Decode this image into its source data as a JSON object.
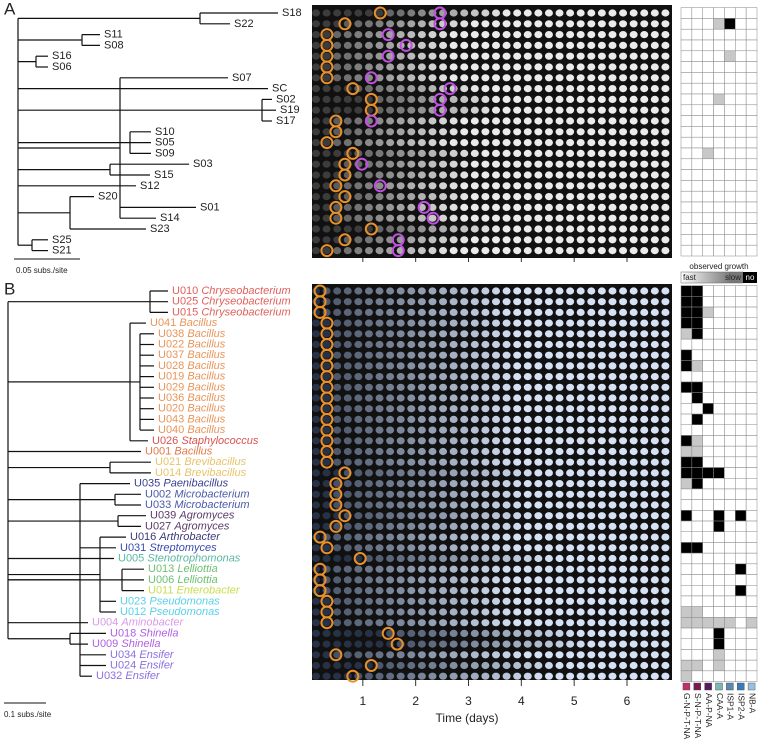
{
  "panel_a": {
    "label": "A",
    "scale_label": "0.05 subs./site",
    "rows": [
      {
        "name": "S18",
        "onset": 1.33,
        "second": 2.46,
        "growth": [
          0,
          0,
          0,
          0,
          0,
          0,
          0
        ]
      },
      {
        "name": "S22",
        "onset": 0.66,
        "second": 2.46,
        "growth": [
          0,
          0,
          0,
          1,
          3,
          0,
          0
        ]
      },
      {
        "name": "S11",
        "onset": 0.32,
        "second": 1.48,
        "growth": [
          0,
          0,
          0,
          0,
          0,
          0,
          0
        ]
      },
      {
        "name": "S08",
        "onset": 0.32,
        "second": 1.82,
        "growth": [
          0,
          0,
          0,
          0,
          0,
          0,
          0
        ]
      },
      {
        "name": "S16",
        "onset": 0.32,
        "second": 1.48,
        "growth": [
          0,
          0,
          0,
          0,
          1,
          0,
          0
        ]
      },
      {
        "name": "S06",
        "onset": 0.32,
        "second": null,
        "growth": [
          0,
          0,
          0,
          0,
          0,
          0,
          0
        ]
      },
      {
        "name": "S07",
        "onset": 0.32,
        "second": 1.16,
        "growth": [
          0,
          0,
          0,
          0,
          0,
          0,
          0
        ]
      },
      {
        "name": "SC",
        "onset": 0.81,
        "second": 2.65,
        "growth": [
          0,
          0,
          0,
          0,
          0,
          0,
          0
        ]
      },
      {
        "name": "S02",
        "onset": 1.16,
        "second": 2.46,
        "growth": [
          0,
          0,
          0,
          1,
          0,
          0,
          0
        ]
      },
      {
        "name": "S19",
        "onset": 1.16,
        "second": 2.46,
        "growth": [
          0,
          0,
          0,
          0,
          0,
          0,
          0
        ]
      },
      {
        "name": "S17",
        "onset": 0.49,
        "second": 1.16,
        "growth": [
          0,
          0,
          0,
          0,
          0,
          0,
          0
        ]
      },
      {
        "name": "S10",
        "onset": 0.49,
        "second": null,
        "growth": [
          0,
          0,
          0,
          0,
          0,
          0,
          0
        ]
      },
      {
        "name": "S05",
        "onset": 0.32,
        "second": null,
        "growth": [
          0,
          0,
          0,
          0,
          0,
          0,
          0
        ]
      },
      {
        "name": "S09",
        "onset": 0.81,
        "second": null,
        "growth": [
          0,
          0,
          1,
          0,
          0,
          0,
          0
        ]
      },
      {
        "name": "S03",
        "onset": 0.66,
        "second": 0.98,
        "growth": [
          0,
          0,
          0,
          0,
          0,
          0,
          0
        ]
      },
      {
        "name": "S15",
        "onset": 0.66,
        "second": null,
        "growth": [
          0,
          0,
          0,
          0,
          0,
          0,
          0
        ]
      },
      {
        "name": "S12",
        "onset": 0.49,
        "second": 1.33,
        "growth": [
          0,
          0,
          0,
          0,
          0,
          0,
          0
        ]
      },
      {
        "name": "S20",
        "onset": 0.66,
        "second": null,
        "growth": [
          0,
          0,
          0,
          0,
          0,
          0,
          0
        ]
      },
      {
        "name": "S01",
        "onset": 0.49,
        "second": 2.16,
        "growth": [
          0,
          0,
          0,
          0,
          0,
          0,
          0
        ]
      },
      {
        "name": "S14",
        "onset": 0.49,
        "second": 2.33,
        "growth": [
          0,
          0,
          0,
          0,
          0,
          0,
          0
        ]
      },
      {
        "name": "S23",
        "onset": 1.16,
        "second": null,
        "growth": [
          0,
          0,
          0,
          0,
          0,
          0,
          0
        ]
      },
      {
        "name": "S25",
        "onset": 0.66,
        "second": 1.67,
        "growth": [
          0,
          0,
          0,
          0,
          0,
          0,
          0
        ]
      },
      {
        "name": "S21",
        "onset": 0.32,
        "second": 1.67,
        "growth": [
          0,
          0,
          0,
          0,
          0,
          0,
          0
        ]
      }
    ]
  },
  "panel_b": {
    "label": "B",
    "scale_label": "0.1 subs./site",
    "rows": [
      {
        "name": "U010",
        "genus": "Chryseobacterium",
        "color": "#e0605a",
        "onset": 0.19,
        "growth": [
          3,
          3,
          0,
          0,
          0,
          0,
          0
        ]
      },
      {
        "name": "U025",
        "genus": "Chryseobacterium",
        "color": "#e0605a",
        "onset": 0.19,
        "growth": [
          3,
          3,
          0,
          0,
          0,
          0,
          0
        ]
      },
      {
        "name": "U015",
        "genus": "Chryseobacterium",
        "color": "#e0605a",
        "onset": 0.19,
        "growth": [
          3,
          3,
          1,
          0,
          0,
          0,
          0
        ]
      },
      {
        "name": "U041",
        "genus": "Bacillus",
        "color": "#e8955a",
        "onset": 0.32,
        "growth": [
          3,
          3,
          0,
          0,
          0,
          0,
          0
        ]
      },
      {
        "name": "U038",
        "genus": "Bacillus",
        "color": "#e8955a",
        "onset": 0.32,
        "growth": [
          1,
          3,
          0,
          0,
          0,
          0,
          0
        ]
      },
      {
        "name": "U022",
        "genus": "Bacillus",
        "color": "#e8955a",
        "onset": 0.32,
        "growth": [
          0,
          0,
          0,
          0,
          0,
          0,
          0
        ]
      },
      {
        "name": "U037",
        "genus": "Bacillus",
        "color": "#e8955a",
        "onset": 0.32,
        "growth": [
          3,
          0,
          0,
          0,
          0,
          0,
          0
        ]
      },
      {
        "name": "U028",
        "genus": "Bacillus",
        "color": "#e8955a",
        "onset": 0.32,
        "growth": [
          3,
          1,
          0,
          0,
          0,
          0,
          0
        ]
      },
      {
        "name": "U019",
        "genus": "Bacillus",
        "color": "#e8955a",
        "onset": 0.32,
        "growth": [
          0,
          0,
          0,
          0,
          0,
          0,
          0
        ]
      },
      {
        "name": "U029",
        "genus": "Bacillus",
        "color": "#e8955a",
        "onset": 0.32,
        "growth": [
          3,
          3,
          0,
          0,
          0,
          0,
          0
        ]
      },
      {
        "name": "U036",
        "genus": "Bacillus",
        "color": "#e8955a",
        "onset": 0.32,
        "growth": [
          0,
          3,
          0,
          0,
          0,
          0,
          0
        ]
      },
      {
        "name": "U020",
        "genus": "Bacillus",
        "color": "#e8955a",
        "onset": 0.32,
        "growth": [
          0,
          0,
          3,
          0,
          0,
          0,
          0
        ]
      },
      {
        "name": "U043",
        "genus": "Bacillus",
        "color": "#e8955a",
        "onset": 0.32,
        "growth": [
          0,
          3,
          0,
          0,
          0,
          0,
          0
        ]
      },
      {
        "name": "U040",
        "genus": "Bacillus",
        "color": "#e8955a",
        "onset": 0.32,
        "growth": [
          0,
          0,
          0,
          0,
          0,
          0,
          0
        ]
      },
      {
        "name": "U026",
        "genus": "Staphylococcus",
        "color": "#d9534f",
        "onset": 0.32,
        "growth": [
          3,
          1,
          0,
          0,
          0,
          0,
          0
        ]
      },
      {
        "name": "U001",
        "genus": "Bacillus",
        "color": "#e07a4a",
        "onset": 0.32,
        "growth": [
          1,
          1,
          0,
          0,
          0,
          0,
          0
        ]
      },
      {
        "name": "U021",
        "genus": "Brevibacillus",
        "color": "#e8c36a",
        "onset": 0.32,
        "growth": [
          3,
          3,
          0,
          0,
          0,
          0,
          0
        ]
      },
      {
        "name": "U014",
        "genus": "Brevibacillus",
        "color": "#e8c36a",
        "onset": 0.66,
        "growth": [
          3,
          3,
          3,
          3,
          0,
          0,
          0
        ]
      },
      {
        "name": "U035",
        "genus": "Paenibacillus",
        "color": "#3a3f8f",
        "onset": 0.49,
        "growth": [
          1,
          3,
          0,
          0,
          0,
          0,
          0
        ]
      },
      {
        "name": "U002",
        "genus": "Microbacterium",
        "color": "#4a5aa8",
        "onset": 0.49,
        "growth": [
          0,
          0,
          0,
          0,
          0,
          0,
          0
        ]
      },
      {
        "name": "U033",
        "genus": "Microbacterium",
        "color": "#4a5aa8",
        "onset": 0.49,
        "growth": [
          0,
          0,
          0,
          0,
          0,
          0,
          0
        ]
      },
      {
        "name": "U039",
        "genus": "Agromyces",
        "color": "#5a3a6a",
        "onset": 0.66,
        "growth": [
          3,
          0,
          0,
          3,
          0,
          3,
          0
        ]
      },
      {
        "name": "U027",
        "genus": "Agromyces",
        "color": "#5a3a6a",
        "onset": 0.49,
        "growth": [
          0,
          0,
          0,
          3,
          0,
          0,
          0
        ]
      },
      {
        "name": "U016",
        "genus": "Arthrobacter",
        "color": "#3a3a7a",
        "onset": 0.19,
        "growth": [
          0,
          0,
          0,
          0,
          0,
          0,
          0
        ]
      },
      {
        "name": "U031",
        "genus": "Streptomyces",
        "color": "#3a4ab0",
        "onset": 0.32,
        "growth": [
          3,
          3,
          0,
          0,
          0,
          0,
          0
        ]
      },
      {
        "name": "U005",
        "genus": "Stenotrophomonas",
        "color": "#5ab8a0",
        "onset": 0.95,
        "growth": [
          0,
          0,
          0,
          0,
          0,
          0,
          0
        ]
      },
      {
        "name": "U013",
        "genus": "Lelliottia",
        "color": "#6cc070",
        "onset": 0.19,
        "growth": [
          0,
          0,
          0,
          0,
          0,
          3,
          0
        ]
      },
      {
        "name": "U006",
        "genus": "Lelliottia",
        "color": "#6cc070",
        "onset": 0.19,
        "growth": [
          0,
          0,
          0,
          0,
          0,
          0,
          0
        ]
      },
      {
        "name": "U011",
        "genus": "Enterobacter",
        "color": "#c8e050",
        "onset": 0.19,
        "growth": [
          0,
          0,
          0,
          0,
          0,
          3,
          0
        ]
      },
      {
        "name": "U023",
        "genus": "Pseudomonas",
        "color": "#5ad0e8",
        "onset": 0.32,
        "growth": [
          0,
          0,
          0,
          0,
          0,
          0,
          0
        ]
      },
      {
        "name": "U012",
        "genus": "Pseudomonas",
        "color": "#5ad0e8",
        "onset": 0.32,
        "growth": [
          1,
          1,
          0,
          0,
          0,
          0,
          0
        ]
      },
      {
        "name": "U004",
        "genus": "Aminobacter",
        "color": "#d89ae8",
        "onset": 0.32,
        "growth": [
          1,
          1,
          1,
          1,
          1,
          0,
          1
        ]
      },
      {
        "name": "U018",
        "genus": "Shinella",
        "color": "#b060e0",
        "onset": 1.48,
        "growth": [
          0,
          0,
          0,
          3,
          0,
          0,
          0
        ]
      },
      {
        "name": "U009",
        "genus": "Shinella",
        "color": "#b060e0",
        "onset": 1.65,
        "growth": [
          0,
          0,
          0,
          3,
          0,
          0,
          0
        ]
      },
      {
        "name": "U034",
        "genus": "Ensifer",
        "color": "#8a70e0",
        "onset": 0.49,
        "growth": [
          0,
          0,
          0,
          1,
          0,
          0,
          0
        ]
      },
      {
        "name": "U024",
        "genus": "Ensifer",
        "color": "#8a70e0",
        "onset": 1.16,
        "growth": [
          1,
          1,
          0,
          1,
          0,
          0,
          0
        ]
      },
      {
        "name": "U032",
        "genus": "Ensifer",
        "color": "#8a70e0",
        "onset": 0.81,
        "growth": [
          1,
          0,
          0,
          0,
          0,
          0,
          0
        ]
      }
    ]
  },
  "time_axis": {
    "title": "Time (days)",
    "lim": [
      0,
      6.85
    ],
    "ticks": [
      1,
      2,
      3,
      4,
      5,
      6
    ]
  },
  "legend": {
    "title": "observed growth",
    "fast": "fast",
    "slow": "slow",
    "no": "no"
  },
  "media": [
    {
      "name": "G-N-P-T-NA",
      "color": "#c0306a"
    },
    {
      "name": "S-N-P-T-NA",
      "color": "#7a1a50"
    },
    {
      "name": "AA-P-NA",
      "color": "#5a1a5a"
    },
    {
      "name": "CAA-A",
      "color": "#7ab8b8"
    },
    {
      "name": "ISP1-A",
      "color": "#5a8ab0"
    },
    {
      "name": "ISP2-A",
      "color": "#3a7ab8"
    },
    {
      "name": "NB-A",
      "color": "#9ac0e0"
    }
  ]
}
